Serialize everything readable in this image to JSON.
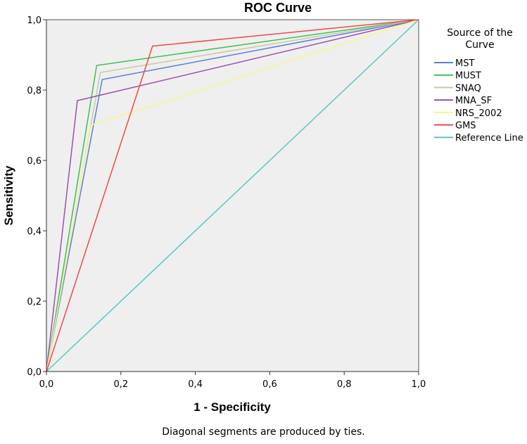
{
  "chart_data": {
    "type": "line",
    "title": "ROC Curve",
    "xlabel": "1 - Specificity",
    "ylabel": "Sensitivity",
    "xlim": [
      0,
      1
    ],
    "ylim": [
      0,
      1
    ],
    "x_ticks": [
      "0,0",
      "0,2",
      "0,4",
      "0,6",
      "0,8",
      "1,0"
    ],
    "y_ticks": [
      "0,0",
      "0,2",
      "0,4",
      "0,6",
      "0,8",
      "1,0"
    ],
    "legend_title": "Source of the Curve",
    "legend_position": "right",
    "series": [
      {
        "name": "MST",
        "color": "#5b7fd6",
        "points": [
          [
            0,
            0
          ],
          [
            0.15,
            0.83
          ],
          [
            1,
            1
          ]
        ]
      },
      {
        "name": "MUST",
        "color": "#3fbf55",
        "points": [
          [
            0,
            0
          ],
          [
            0.135,
            0.87
          ],
          [
            1,
            1
          ]
        ]
      },
      {
        "name": "SNAQ",
        "color": "#c9c9a3",
        "points": [
          [
            0,
            0
          ],
          [
            0.145,
            0.85
          ],
          [
            1,
            1
          ]
        ]
      },
      {
        "name": "MNA_SF",
        "color": "#9b4fb0",
        "points": [
          [
            0,
            0
          ],
          [
            0.083,
            0.77
          ],
          [
            1,
            1
          ]
        ]
      },
      {
        "name": "NRS_2002",
        "color": "#f7f78a",
        "points": [
          [
            0,
            0
          ],
          [
            0.12,
            0.7
          ],
          [
            1,
            1
          ]
        ]
      },
      {
        "name": "GMS",
        "color": "#ee4a4a",
        "points": [
          [
            0,
            0
          ],
          [
            0.285,
            0.925
          ],
          [
            1,
            1
          ]
        ]
      },
      {
        "name": "Reference Line",
        "color": "#5cc6c6",
        "points": [
          [
            0,
            0
          ],
          [
            1,
            1
          ]
        ]
      }
    ]
  },
  "footnote": "Diagonal segments are produced by ties."
}
